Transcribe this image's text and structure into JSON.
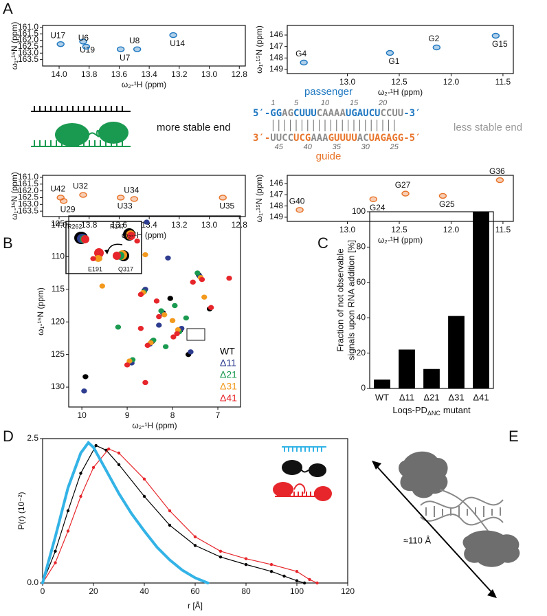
{
  "panel_labels": [
    "A",
    "B",
    "C",
    "D",
    "E"
  ],
  "panel_a": {
    "passenger_label": "passenger",
    "guide_label": "guide",
    "left_end": "more stable end",
    "right_end": "less stable end",
    "passenger": [
      {
        "text": "5′-GG",
        "color": "#1f78c1"
      },
      {
        "text": "AG",
        "color": "#8c8c8c"
      },
      {
        "text": "CUUU",
        "color": "#1f78c1"
      },
      {
        "text": "CAAAA",
        "color": "#8c8c8c"
      },
      {
        "text": "UGAUCU",
        "color": "#1f78c1"
      },
      {
        "text": "CCUU",
        "color": "#8c8c8c"
      },
      {
        "text": "-3′",
        "color": "#1f78c1"
      }
    ],
    "guide": [
      {
        "text": "3′-",
        "color": "#e8742a"
      },
      {
        "text": "UUCC",
        "color": "#8c8c8c"
      },
      {
        "text": "UCG",
        "color": "#e8742a"
      },
      {
        "text": "AAA",
        "color": "#8c8c8c"
      },
      {
        "text": "GUUUU",
        "color": "#e8742a"
      },
      {
        "text": "AC",
        "color": "#8c8c8c"
      },
      {
        "text": "UAGAGG",
        "color": "#e8742a"
      },
      {
        "text": "-5′",
        "color": "#e8742a"
      }
    ],
    "passenger_numbers": [
      1,
      5,
      10,
      15,
      20
    ],
    "guide_numbers": [
      45,
      40,
      35,
      30,
      25
    ]
  },
  "panel_b": {
    "inset_labels": [
      "R262",
      "R147",
      "E191",
      "Q317"
    ]
  },
  "panel_e": {
    "distance_label": "≈110 Å"
  },
  "chart_data": [
    {
      "type": "spectrum",
      "xlabel": "ω₂-¹H (ppm)",
      "ylabel": "ω₁-¹⁵N (ppm)",
      "xlim": [
        14.11,
        12.76
      ],
      "ylim": [
        164.0,
        160.85
      ],
      "xticks": [
        {
          "value": 14,
          "label": "14.0"
        },
        13.8,
        13.6,
        13.4,
        13.2,
        {
          "value": 13,
          "label": "13.0"
        },
        12.8
      ],
      "yticks": [
        {
          "value": 161,
          "label": "161.0"
        },
        161.5,
        {
          "value": 162,
          "label": "162.0"
        },
        162.5,
        {
          "value": 163,
          "label": "163.0"
        },
        163.5
      ],
      "series": [
        {
          "color": "#1f78c1",
          "labels": [
            "U17",
            "U19",
            "U6",
            "U7",
            "U8",
            "U14"
          ],
          "x": [
            13.99,
            13.84,
            13.82,
            13.59,
            13.48,
            13.24
          ],
          "y": [
            162.3,
            162.1,
            162.5,
            162.7,
            162.7,
            161.6
          ]
        }
      ]
    },
    {
      "type": "spectrum",
      "xlabel": "ω₂-¹H (ppm)",
      "ylabel": "ω₁-¹⁵N (ppm)",
      "xlim": [
        13.58,
        11.4
      ],
      "ylim": [
        149.36,
        145.16
      ],
      "xticks": [
        {
          "value": 13,
          "label": "13.0"
        },
        12.5,
        {
          "value": 12,
          "label": "12.0"
        },
        11.5
      ],
      "yticks": [
        146,
        147,
        148,
        149
      ],
      "series": [
        {
          "color": "#1f78c1",
          "labels": [
            "G4",
            "G1",
            "G2",
            "G15"
          ],
          "x": [
            13.42,
            12.59,
            12.14,
            11.57
          ],
          "y": [
            148.4,
            147.56,
            147.08,
            146.06
          ]
        }
      ]
    },
    {
      "type": "spectrum",
      "xlabel": "ω₂-¹H (ppm)",
      "ylabel": "ω₁-¹⁵N (ppm)",
      "xlim": [
        14.11,
        12.76
      ],
      "ylim": [
        163.9,
        160.85
      ],
      "xticks": [
        {
          "value": 14,
          "label": "14.0"
        },
        13.8,
        13.6,
        13.4,
        13.2,
        {
          "value": 13,
          "label": "13.0"
        },
        12.8
      ],
      "yticks": [
        {
          "value": 161,
          "label": "161.0"
        },
        161.5,
        {
          "value": 162,
          "label": "162.0"
        },
        162.5,
        {
          "value": 163,
          "label": "163.0"
        },
        163.5
      ],
      "series": [
        {
          "color": "#e8742a",
          "labels": [
            "U42",
            "U29",
            "U32",
            "U33",
            "U34",
            "U35"
          ],
          "x": [
            13.99,
            13.97,
            13.84,
            13.59,
            13.5,
            12.91
          ],
          "y": [
            162.5,
            162.75,
            162.3,
            162.5,
            162.6,
            162.5
          ]
        }
      ]
    },
    {
      "type": "spectrum",
      "xlabel": "ω₂-¹H (ppm)",
      "ylabel": "ω₁-¹⁵N (ppm)",
      "xlim": [
        13.58,
        11.4
      ],
      "ylim": [
        149.37,
        145.27
      ],
      "xticks": [
        {
          "value": 13,
          "label": "13.0"
        },
        12.5,
        {
          "value": 12,
          "label": "12.0"
        },
        11.5
      ],
      "yticks": [
        146,
        147,
        148,
        149
      ],
      "series": [
        {
          "color": "#e8742a",
          "labels": [
            "G40",
            "G24",
            "G27",
            "G25",
            "G36"
          ],
          "x": [
            13.46,
            12.75,
            12.44,
            12.08,
            11.53
          ],
          "y": [
            148.35,
            147.4,
            146.9,
            147.1,
            145.7
          ]
        }
      ]
    },
    {
      "type": "spectrum",
      "xlabel": "ω₂-¹H (ppm)",
      "ylabel": "ω₁-¹⁵N (ppm)",
      "xlim": [
        10.29,
        6.5
      ],
      "ylim": [
        133.05,
        103.74
      ],
      "xticks": [
        10,
        9,
        8,
        7
      ],
      "yticks": [
        105,
        110,
        115,
        120,
        125,
        130
      ],
      "legend": "lower right",
      "series": [
        {
          "name": "WT",
          "color": "#000000",
          "x": [
            8.62,
            8.21,
            7.83,
            8.45,
            7.42,
            8.93,
            9.92,
            7.18,
            8.05,
            7.65
          ],
          "y": [
            115.2,
            118.6,
            121.3,
            123.0,
            112.8,
            126.1,
            128.4,
            118.0,
            116.4,
            125.0
          ]
        },
        {
          "name": "Δ11",
          "color": "#2e3d8f",
          "x": [
            8.6,
            8.2,
            7.8,
            8.5,
            7.4,
            8.9,
            9.95,
            8.1,
            7.6,
            8.3,
            8.57
          ],
          "y": [
            115.0,
            118.8,
            121.0,
            123.4,
            113.0,
            126.3,
            130.6,
            110.2,
            124.6,
            120.5,
            104.7
          ]
        },
        {
          "name": "Δ21",
          "color": "#1a9a50",
          "x": [
            8.63,
            8.25,
            7.85,
            8.42,
            7.45,
            8.88,
            7.95,
            8.15,
            7.7,
            9.2
          ],
          "y": [
            115.4,
            118.3,
            121.5,
            122.8,
            112.5,
            125.8,
            117.5,
            123.8,
            119.4,
            120.8
          ]
        },
        {
          "name": "Δ31",
          "color": "#f39a1e",
          "x": [
            8.65,
            8.18,
            7.88,
            8.48,
            7.38,
            8.95,
            8.6,
            8.0,
            7.3,
            9.55
          ],
          "y": [
            115.5,
            118.9,
            121.2,
            123.2,
            113.2,
            126.0,
            109.7,
            119.8,
            116.2,
            114.5
          ]
        },
        {
          "name": "Δ41",
          "color": "#e6262b",
          "x": [
            8.7,
            8.3,
            7.9,
            8.55,
            7.35,
            9.0,
            8.78,
            7.15,
            8.6,
            7.98,
            8.35,
            7.55,
            9.75,
            6.75,
            8.7
          ],
          "y": [
            115.8,
            119.2,
            121.8,
            123.6,
            113.5,
            126.6,
            107.6,
            117.8,
            129.3,
            122.3,
            116.8,
            113.9,
            110.3,
            113.3,
            121.0
          ]
        }
      ]
    },
    {
      "type": "bar",
      "ylabel": [
        "Fraction of not observable",
        "signals upon RNA addition [%]"
      ],
      "xlabel": {
        "text": "Loqs-PD",
        "subscript": "ΔNC",
        "suffix": "mutant"
      },
      "categories": [
        "WT",
        "Δ11",
        "Δ21",
        "Δ31",
        "Δ41"
      ],
      "values": [
        5,
        22,
        11,
        41,
        100
      ],
      "color": "#000000",
      "ylim": [
        0,
        100
      ],
      "yticks": [
        0,
        20,
        40,
        60,
        80,
        100
      ]
    },
    {
      "type": "line",
      "xlabel": "r [Å]",
      "ylabel": "P(r) (10⁻²)",
      "xlim": [
        0,
        120
      ],
      "xticks": [
        0,
        20,
        40,
        60,
        80,
        100,
        120
      ],
      "ylim": [
        0,
        2.5
      ],
      "yticks": [
        {
          "value": 0,
          "label": "0.0"
        },
        2.5
      ],
      "series": [
        {
          "color": "#000000",
          "markers": true,
          "x": [
            0,
            5,
            10,
            15,
            21,
            25,
            30,
            40,
            50,
            60,
            70,
            80,
            90,
            95,
            100,
            103
          ],
          "values": [
            0,
            0.55,
            1.25,
            1.9,
            2.38,
            2.3,
            2.05,
            1.5,
            1.0,
            0.65,
            0.45,
            0.32,
            0.2,
            0.12,
            0.04,
            0
          ]
        },
        {
          "color": "#e6262b",
          "markers": true,
          "x": [
            0,
            5,
            10,
            15,
            20,
            26,
            30,
            40,
            50,
            60,
            70,
            80,
            90,
            100,
            105,
            108
          ],
          "values": [
            0,
            0.35,
            0.9,
            1.5,
            2.0,
            2.32,
            2.25,
            1.8,
            1.25,
            0.8,
            0.55,
            0.42,
            0.32,
            0.2,
            0.06,
            0
          ]
        },
        {
          "color": "#33b3e6",
          "markers": false,
          "x": [
            0,
            5,
            10,
            15,
            18,
            20,
            25,
            30,
            35,
            40,
            45,
            50,
            55,
            60,
            65
          ],
          "values": [
            0,
            0.8,
            1.65,
            2.25,
            2.43,
            2.35,
            1.95,
            1.55,
            1.2,
            0.9,
            0.62,
            0.4,
            0.22,
            0.09,
            0
          ]
        }
      ]
    }
  ]
}
